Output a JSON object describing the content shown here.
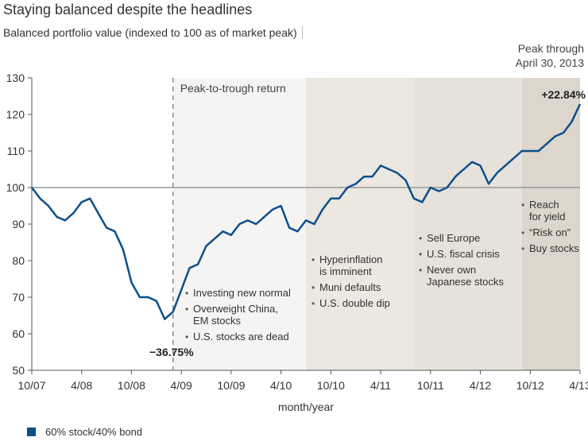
{
  "page": {
    "title": "Staying balanced despite the headlines",
    "subtitle": "Balanced portfolio value (indexed to 100 as of market peak)"
  },
  "colors": {
    "line": "#0d4f8b",
    "reference_line": "#999999",
    "band_trough_period": "#f5f4f2",
    "band_2010": "#ebe7e1",
    "band_2011": "#e6e1da",
    "band_2012": "#ddd6cc",
    "dashed_marker": "#8a8a8a"
  },
  "chart_data": {
    "type": "line",
    "xlabel": "month/year",
    "ylabel": "",
    "ylim": [
      50,
      130
    ],
    "yticks": [
      50,
      60,
      70,
      80,
      90,
      100,
      110,
      120,
      130
    ],
    "xticks": [
      "10/07",
      "4/08",
      "10/08",
      "4/09",
      "10/09",
      "4/10",
      "10/10",
      "4/11",
      "10/11",
      "4/12",
      "10/12",
      "4/13"
    ],
    "xlim": [
      "10/07",
      "4/13"
    ],
    "reference_line": 100,
    "legend_position": "bottom-left",
    "series": [
      {
        "name": "60% stock/40% bond",
        "x": [
          "10/07",
          "11/07",
          "12/07",
          "1/08",
          "2/08",
          "3/08",
          "4/08",
          "5/08",
          "6/08",
          "7/08",
          "8/08",
          "9/08",
          "10/08",
          "11/08",
          "12/08",
          "1/09",
          "2/09",
          "3/09",
          "4/09",
          "5/09",
          "6/09",
          "7/09",
          "8/09",
          "9/09",
          "10/09",
          "11/09",
          "12/09",
          "1/10",
          "2/10",
          "3/10",
          "4/10",
          "5/10",
          "6/10",
          "7/10",
          "8/10",
          "9/10",
          "10/10",
          "11/10",
          "12/10",
          "1/11",
          "2/11",
          "3/11",
          "4/11",
          "5/11",
          "6/11",
          "7/11",
          "8/11",
          "9/11",
          "10/11",
          "11/11",
          "12/11",
          "1/12",
          "2/12",
          "3/12",
          "4/12",
          "5/12",
          "6/12",
          "7/12",
          "8/12",
          "9/12",
          "10/12",
          "11/12",
          "12/12",
          "1/13",
          "2/13",
          "3/13",
          "4/13"
        ],
        "values": [
          100,
          97,
          95,
          92,
          91,
          93,
          96,
          97,
          93,
          89,
          88,
          83,
          74,
          70,
          70,
          69,
          64,
          66,
          72,
          78,
          79,
          84,
          86,
          88,
          87,
          90,
          91,
          90,
          92,
          94,
          95,
          89,
          88,
          91,
          90,
          94,
          97,
          97,
          100,
          101,
          103,
          103,
          106,
          105,
          104,
          102,
          97,
          96,
          100,
          99,
          100,
          103,
          105,
          107,
          106,
          101,
          104,
          106,
          108,
          110,
          110,
          110,
          112,
          114,
          115,
          118,
          122.84
        ]
      }
    ],
    "markers": {
      "trough": {
        "x": "3/09",
        "value": -36.75,
        "label": "−36.75%"
      },
      "peak": {
        "x": "4/13",
        "value": 22.84,
        "label": "+22.84%"
      }
    },
    "bands": [
      {
        "from": "3/09",
        "to": "7/10",
        "label": "Peak-to-trough return"
      },
      {
        "from": "7/10",
        "to": "8/11",
        "label": ""
      },
      {
        "from": "8/11",
        "to": "9/12",
        "label": ""
      },
      {
        "from": "9/12",
        "to": "4/13",
        "label": "Peak through April 30, 2013"
      }
    ],
    "annotations": {
      "trough_period": [
        "Investing new normal",
        "Overweight China, EM stocks",
        "U.S. stocks are dead"
      ],
      "period_2010": [
        "Hyperinflation is imminent",
        "Muni defaults",
        "U.S. double dip"
      ],
      "period_2011": [
        "Sell Europe",
        "U.S. fiscal crisis",
        "Never own Japanese stocks"
      ],
      "period_2012": [
        "Reach for yield",
        "“Risk on”",
        "Buy stocks"
      ]
    }
  }
}
